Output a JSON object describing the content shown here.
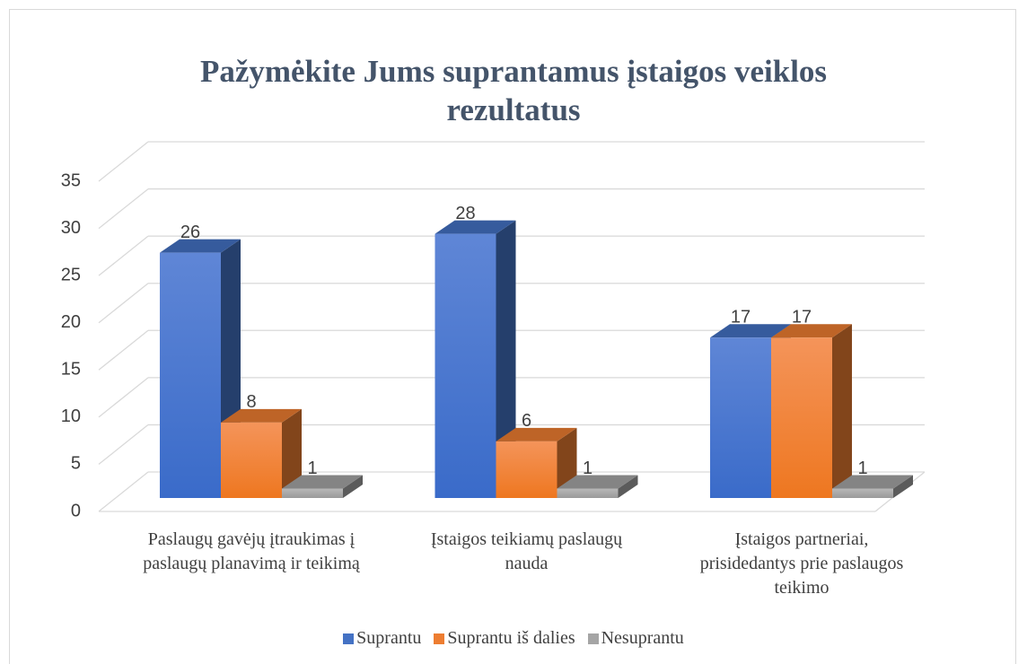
{
  "chart_data": {
    "type": "bar3d",
    "title": "Pažymėkite Jums suprantamus įstaigos veiklos rezultatus",
    "categories": [
      "Paslaugų gavėjų įtraukimas į paslaugų planavimą ir teikimą",
      "Įstaigos teikiamų paslaugų nauda",
      "Įstaigos partneriai, prisidedantys prie paslaugos teikimo"
    ],
    "series": [
      {
        "name": "Suprantu",
        "color": "#4472c4",
        "values": [
          26,
          28,
          17
        ]
      },
      {
        "name": "Suprantu iš dalies",
        "color": "#ed7d31",
        "values": [
          8,
          6,
          17
        ]
      },
      {
        "name": "Nesuprantu",
        "color": "#a5a5a5",
        "values": [
          1,
          1,
          1
        ]
      }
    ],
    "ylim": [
      0,
      35
    ],
    "yticks": [
      0,
      5,
      10,
      15,
      20,
      25,
      30,
      35
    ],
    "grid": true,
    "legend": "bottom"
  }
}
